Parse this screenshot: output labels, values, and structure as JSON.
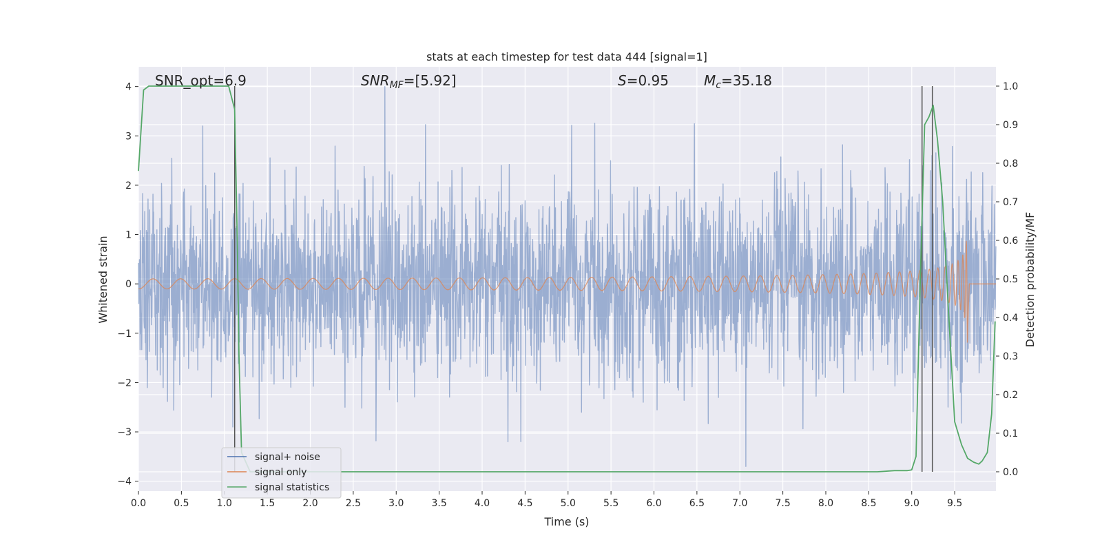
{
  "chart_data": {
    "type": "line",
    "title": "stats at each timestep for test data 444 [signal=1]",
    "xlabel": "Time (s)",
    "ylabel": "Whitened strain",
    "ylabel_right": "Detection probability/MF",
    "xlim": [
      0.0,
      9.98
    ],
    "ylim": [
      -4.2,
      4.4
    ],
    "ylim_right": [
      -0.05,
      1.05
    ],
    "x_ticks": [
      "0.0",
      "0.5",
      "1.0",
      "1.5",
      "2.0",
      "2.5",
      "3.0",
      "3.5",
      "4.0",
      "4.5",
      "5.0",
      "5.5",
      "6.0",
      "6.5",
      "7.0",
      "7.5",
      "8.0",
      "8.5",
      "9.0",
      "9.5"
    ],
    "y_ticks": [
      "4",
      "3",
      "2",
      "1",
      "0",
      "−1",
      "−2",
      "−3",
      "−4"
    ],
    "y_ticks_right": [
      "1.0",
      "0.9",
      "0.8",
      "0.7",
      "0.6",
      "0.5",
      "0.4",
      "0.3",
      "0.2",
      "0.1",
      "0.0"
    ],
    "grid": true,
    "annotations": {
      "snr_opt": "SNR_opt=6.9",
      "snr_mf_label": "SNR",
      "snr_mf_sub": "MF",
      "snr_mf_value": "=[5.92]",
      "s_label": "S",
      "s_value": "=0.95",
      "mc_label": "M",
      "mc_sub": "c",
      "mc_value": "=35.18"
    },
    "vertical_lines_x": [
      1.12,
      9.12,
      9.24
    ],
    "legend": {
      "position": "lower-left",
      "entries": [
        "signal+ noise",
        "signal only",
        "signal statistics"
      ]
    },
    "series": [
      {
        "name": "signal+ noise",
        "axis": "left",
        "color": "#4c72b0",
        "description": "whitened strain, unit-variance noise with spikes",
        "notable_spikes": [
          {
            "x": 0.75,
            "y": 3.2
          },
          {
            "x": 2.87,
            "y": 4.0
          },
          {
            "x": 4.3,
            "y": -3.2
          },
          {
            "x": 7.07,
            "y": -3.7
          },
          {
            "x": 1.1,
            "y": -2.9
          }
        ]
      },
      {
        "name": "signal only",
        "axis": "left",
        "color": "#dd8452",
        "description": "chirp signal increasing in amplitude up to merger near 9.65 s",
        "peak_x": 9.65,
        "peak_amplitude": 1.55
      },
      {
        "name": "signal statistics",
        "axis": "right",
        "color": "#55a868",
        "x": [
          0.0,
          0.06,
          0.12,
          0.3,
          0.6,
          0.9,
          1.05,
          1.12,
          1.15,
          1.17,
          1.2,
          1.3,
          2.0,
          4.0,
          6.0,
          8.0,
          8.6,
          8.8,
          8.95,
          9.0,
          9.05,
          9.1,
          9.15,
          9.2,
          9.25,
          9.3,
          9.36,
          9.42,
          9.5,
          9.58,
          9.65,
          9.72,
          9.78,
          9.82,
          9.88,
          9.93,
          9.97
        ],
        "y": [
          0.78,
          0.99,
          1.0,
          1.0,
          1.0,
          1.0,
          1.0,
          0.94,
          0.6,
          0.3,
          0.05,
          0.0,
          0.0,
          0.0,
          0.0,
          0.0,
          0.0,
          0.003,
          0.003,
          0.005,
          0.04,
          0.5,
          0.9,
          0.92,
          0.95,
          0.86,
          0.7,
          0.45,
          0.13,
          0.07,
          0.035,
          0.025,
          0.02,
          0.028,
          0.05,
          0.15,
          0.39
        ]
      }
    ]
  }
}
